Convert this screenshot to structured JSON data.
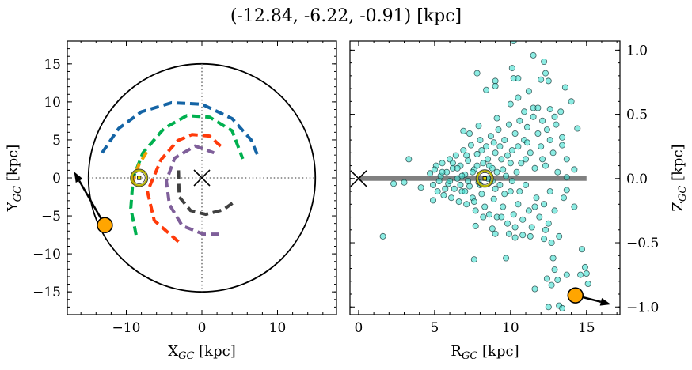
{
  "title": "(-12.84, -6.22, -0.91) [kpc]",
  "chart_data": [
    {
      "type": "line",
      "panel": "left",
      "xlabel": "X",
      "xlabel_sub": "GC",
      "xlabel_unit": " [kpc]",
      "ylabel": "Y",
      "ylabel_sub": "GC",
      "ylabel_unit": " [kpc]",
      "xlim": [
        -17.8,
        17.8
      ],
      "ylim": [
        -18,
        18
      ],
      "xticks": [
        {
          "v": -10,
          "label": "−10"
        },
        {
          "v": 0,
          "label": "0"
        },
        {
          "v": 10,
          "label": "10"
        }
      ],
      "yticks": [
        {
          "v": 15,
          "label": "15"
        },
        {
          "v": 10,
          "label": "10"
        },
        {
          "v": 5,
          "label": "5"
        },
        {
          "v": 0,
          "label": "0"
        },
        {
          "v": -5,
          "label": "−5"
        },
        {
          "v": -10,
          "label": "−10"
        },
        {
          "v": -15,
          "label": "−15"
        }
      ],
      "circle_radius": 15,
      "arms": [
        {
          "color": "#1464a5",
          "points": [
            [
              -13.2,
              3.3
            ],
            [
              -11,
              6.5
            ],
            [
              -8,
              8.7
            ],
            [
              -4,
              9.9
            ],
            [
              0,
              9.7
            ],
            [
              4,
              7.8
            ],
            [
              6.5,
              5
            ],
            [
              7.5,
              2.7
            ]
          ]
        },
        {
          "color": "#00b04f",
          "points": [
            [
              -8.7,
              -7.5
            ],
            [
              -9.4,
              -4
            ],
            [
              -9.1,
              0
            ],
            [
              -7.8,
              3.3
            ],
            [
              -5,
              6.5
            ],
            [
              -2,
              8.2
            ],
            [
              1,
              8
            ],
            [
              4,
              6.2
            ],
            [
              5.4,
              2.5
            ]
          ]
        },
        {
          "color": "#ff3a0a",
          "points": [
            [
              -3.1,
              -8.4
            ],
            [
              -6.3,
              -5.6
            ],
            [
              -7.2,
              -1.8
            ],
            [
              -5.4,
              2.4
            ],
            [
              -3.2,
              4.9
            ],
            [
              -1.3,
              5.7
            ],
            [
              1,
              5.5
            ],
            [
              2.8,
              3.9
            ]
          ]
        },
        {
          "color": "#7f5f9a",
          "points": [
            [
              2.3,
              -7.4
            ],
            [
              0.2,
              -7.4
            ],
            [
              -2.6,
              -6.3
            ],
            [
              -4.3,
              -3.5
            ],
            [
              -4.7,
              -0.4
            ],
            [
              -3.6,
              2.6
            ],
            [
              -0.9,
              4.2
            ],
            [
              1.6,
              3.3
            ]
          ]
        },
        {
          "color": "#f0a000",
          "points": [
            [
              -7.3,
              3.4
            ],
            [
              -8.3,
              1.8
            ],
            [
              -9,
              0
            ],
            [
              -9.1,
              -1
            ]
          ]
        },
        {
          "color": "#404040",
          "points": [
            [
              -3.1,
              1.0
            ],
            [
              -3.0,
              -2.5
            ],
            [
              -1.5,
              -4.3
            ],
            [
              0.5,
              -4.8
            ],
            [
              2.8,
              -4.2
            ],
            [
              4.5,
              -3.0
            ]
          ]
        }
      ],
      "center_marker": [
        0,
        0
      ],
      "sun": [
        -8.3,
        0
      ],
      "object": [
        -12.84,
        -6.22
      ],
      "arrow_to": [
        -16.9,
        0.8
      ]
    },
    {
      "type": "scatter",
      "panel": "right",
      "xlabel": "R",
      "xlabel_sub": "GC",
      "xlabel_unit": " [kpc]",
      "ylabel": "Z",
      "ylabel_sub": "GC",
      "ylabel_unit": " [kpc]",
      "xlim": [
        -0.57,
        17.2
      ],
      "ylim": [
        -1.06,
        1.07
      ],
      "xticks": [
        {
          "v": 0,
          "label": "0"
        },
        {
          "v": 5,
          "label": "5"
        },
        {
          "v": 10,
          "label": "10"
        },
        {
          "v": 15,
          "label": "15"
        }
      ],
      "yticks": [
        {
          "v": 1.0,
          "label": "1.0"
        },
        {
          "v": 0.5,
          "label": "0.5"
        },
        {
          "v": 0.0,
          "label": "0.0"
        },
        {
          "v": -0.5,
          "label": "−0.5"
        },
        {
          "v": -1.0,
          "label": "−1.0"
        }
      ],
      "disk_line": [
        [
          0,
          0
        ],
        [
          15,
          0
        ]
      ],
      "center_marker": [
        0,
        0
      ],
      "sun": [
        8.3,
        0
      ],
      "object": [
        14.27,
        -0.91
      ],
      "arrow_to": [
        16.6,
        -0.98
      ],
      "point_color": "#40e0d0",
      "points": [
        [
          1.6,
          -0.45
        ],
        [
          2.3,
          -0.04
        ],
        [
          3.0,
          -0.03
        ],
        [
          3.3,
          0.15
        ],
        [
          7.8,
          0.82
        ],
        [
          8.4,
          0.69
        ],
        [
          11.5,
          0.96
        ],
        [
          12.2,
          0.91
        ],
        [
          10.1,
          0.86
        ],
        [
          10.2,
          0.78
        ],
        [
          10.5,
          0.78
        ],
        [
          9.0,
          0.76
        ],
        [
          9.0,
          0.72
        ],
        [
          12.3,
          0.82
        ],
        [
          12.0,
          0.77
        ],
        [
          12.5,
          0.76
        ],
        [
          13.6,
          0.71
        ],
        [
          14.0,
          0.6
        ],
        [
          14.4,
          0.39
        ],
        [
          14.2,
          0.07
        ],
        [
          13.7,
          0.01
        ],
        [
          13.7,
          -0.09
        ],
        [
          14.2,
          -0.22
        ],
        [
          14.7,
          -0.55
        ],
        [
          14.9,
          -0.69
        ],
        [
          15.0,
          -0.74
        ],
        [
          14.6,
          -0.75
        ],
        [
          13.7,
          -0.75
        ],
        [
          15.1,
          -0.82
        ],
        [
          11.6,
          -0.86
        ],
        [
          12.4,
          -0.78
        ],
        [
          13.1,
          -0.79
        ],
        [
          12.7,
          -0.83
        ],
        [
          12.9,
          -0.71
        ],
        [
          12.8,
          -0.62
        ],
        [
          12.5,
          -1.0
        ],
        [
          13.2,
          -0.99
        ],
        [
          13.4,
          -1.01
        ],
        [
          7.6,
          -0.63
        ],
        [
          9.7,
          -0.62
        ],
        [
          7.7,
          -0.37
        ],
        [
          4.9,
          -0.17
        ],
        [
          4.1,
          -0.07
        ],
        [
          6.9,
          0.37
        ],
        [
          7.3,
          0.35
        ],
        [
          7.9,
          0.41
        ],
        [
          9.1,
          0.47
        ],
        [
          10.0,
          0.58
        ],
        [
          10.5,
          0.63
        ],
        [
          11.2,
          0.68
        ],
        [
          11.5,
          0.55
        ],
        [
          12.6,
          0.54
        ],
        [
          13.3,
          0.52
        ],
        [
          13.4,
          0.26
        ],
        [
          10.2,
          1.07
        ],
        [
          12.2,
          -0.47
        ],
        [
          12.7,
          -0.5
        ],
        [
          10.8,
          -0.44
        ],
        [
          10.3,
          -0.46
        ],
        [
          8.8,
          -0.39
        ],
        [
          9.0,
          -0.43
        ],
        [
          9.9,
          -0.43
        ],
        [
          4.7,
          0.04
        ],
        [
          4.9,
          -0.05
        ],
        [
          5.1,
          0.1
        ],
        [
          5.2,
          -0.1
        ],
        [
          5.4,
          0.02
        ],
        [
          5.5,
          0.12
        ],
        [
          5.6,
          -0.13
        ],
        [
          5.8,
          0.05
        ],
        [
          5.9,
          -0.04
        ],
        [
          6.0,
          0.15
        ],
        [
          6.1,
          -0.15
        ],
        [
          6.2,
          0.08
        ],
        [
          6.3,
          -0.08
        ],
        [
          6.4,
          0.18
        ],
        [
          6.5,
          0.0
        ],
        [
          6.6,
          -0.18
        ],
        [
          6.7,
          0.1
        ],
        [
          6.8,
          -0.1
        ],
        [
          6.9,
          0.22
        ],
        [
          7.0,
          0.03
        ],
        [
          7.1,
          -0.2
        ],
        [
          7.2,
          0.14
        ],
        [
          7.3,
          -0.06
        ],
        [
          7.4,
          0.26
        ],
        [
          7.5,
          -0.15
        ],
        [
          7.6,
          0.07
        ],
        [
          7.7,
          -0.25
        ],
        [
          7.8,
          0.19
        ],
        [
          7.9,
          -0.03
        ],
        [
          8.0,
          0.3
        ],
        [
          8.1,
          -0.12
        ],
        [
          8.2,
          0.12
        ],
        [
          8.3,
          -0.22
        ],
        [
          8.4,
          0.25
        ],
        [
          8.5,
          0.0
        ],
        [
          8.6,
          -0.28
        ],
        [
          8.7,
          0.33
        ],
        [
          8.8,
          0.08
        ],
        [
          8.9,
          -0.16
        ],
        [
          9.0,
          0.2
        ],
        [
          9.1,
          -0.3
        ],
        [
          9.2,
          0.38
        ],
        [
          9.3,
          -0.05
        ],
        [
          9.4,
          0.15
        ],
        [
          9.5,
          -0.22
        ],
        [
          9.6,
          0.3
        ],
        [
          9.7,
          0.02
        ],
        [
          9.8,
          -0.35
        ],
        [
          9.9,
          0.42
        ],
        [
          10.0,
          -0.1
        ],
        [
          10.1,
          0.22
        ],
        [
          10.2,
          -0.28
        ],
        [
          10.3,
          0.35
        ],
        [
          10.4,
          0.05
        ],
        [
          10.5,
          -0.2
        ],
        [
          10.6,
          0.45
        ],
        [
          10.7,
          0.12
        ],
        [
          10.8,
          -0.32
        ],
        [
          10.9,
          0.3
        ],
        [
          11.0,
          -0.05
        ],
        [
          11.1,
          0.4
        ],
        [
          11.2,
          -0.25
        ],
        [
          11.3,
          0.2
        ],
        [
          11.4,
          -0.38
        ],
        [
          11.5,
          0.48
        ],
        [
          11.6,
          0.08
        ],
        [
          11.7,
          -0.15
        ],
        [
          11.8,
          0.35
        ],
        [
          11.9,
          -0.3
        ],
        [
          12.0,
          0.25
        ],
        [
          12.1,
          0.45
        ],
        [
          12.2,
          -0.2
        ],
        [
          12.3,
          0.1
        ],
        [
          12.4,
          0.38
        ],
        [
          12.5,
          -0.35
        ],
        [
          12.6,
          0.3
        ],
        [
          12.8,
          0.2
        ],
        [
          12.9,
          -0.25
        ],
        [
          13.0,
          0.42
        ],
        [
          13.1,
          0.05
        ],
        [
          13.2,
          -0.45
        ],
        [
          13.4,
          0.32
        ],
        [
          13.5,
          -0.15
        ],
        [
          13.7,
          0.15
        ],
        [
          5.5,
          0.05
        ],
        [
          6.0,
          -0.02
        ],
        [
          6.5,
          0.08
        ],
        [
          7.0,
          -0.1
        ],
        [
          7.5,
          0.05
        ],
        [
          8.0,
          -0.05
        ],
        [
          8.5,
          0.15
        ],
        [
          9.0,
          -0.08
        ],
        [
          9.5,
          0.07
        ],
        [
          10.0,
          0.12
        ],
        [
          7.2,
          -0.02
        ],
        [
          7.8,
          0.1
        ],
        [
          8.8,
          -0.02
        ],
        [
          9.8,
          0.18
        ],
        [
          6.8,
          0.02
        ],
        [
          5.3,
          -0.02
        ],
        [
          10.5,
          0.25
        ],
        [
          11.0,
          0.15
        ],
        [
          9.3,
          0.25
        ],
        [
          8.2,
          -0.3
        ],
        [
          5.0,
          0.07
        ],
        [
          5.7,
          -0.08
        ],
        [
          6.2,
          0.12
        ],
        [
          6.7,
          -0.05
        ],
        [
          7.1,
          0.18
        ],
        [
          7.6,
          -0.18
        ],
        [
          8.1,
          0.22
        ],
        [
          8.6,
          0.1
        ],
        [
          9.1,
          0.05
        ],
        [
          9.6,
          -0.12
        ],
        [
          10.1,
          -0.02
        ],
        [
          10.6,
          -0.1
        ],
        [
          11.1,
          0.28
        ],
        [
          11.6,
          -0.22
        ],
        [
          12.1,
          0.15
        ],
        [
          12.6,
          -0.1
        ],
        [
          8.9,
          0.28
        ],
        [
          9.4,
          -0.3
        ],
        [
          10.3,
          -0.38
        ],
        [
          10.9,
          0.52
        ],
        [
          11.8,
          0.55
        ],
        [
          12.9,
          0.48
        ],
        [
          11.3,
          -0.45
        ],
        [
          12.3,
          -0.4
        ]
      ]
    }
  ]
}
